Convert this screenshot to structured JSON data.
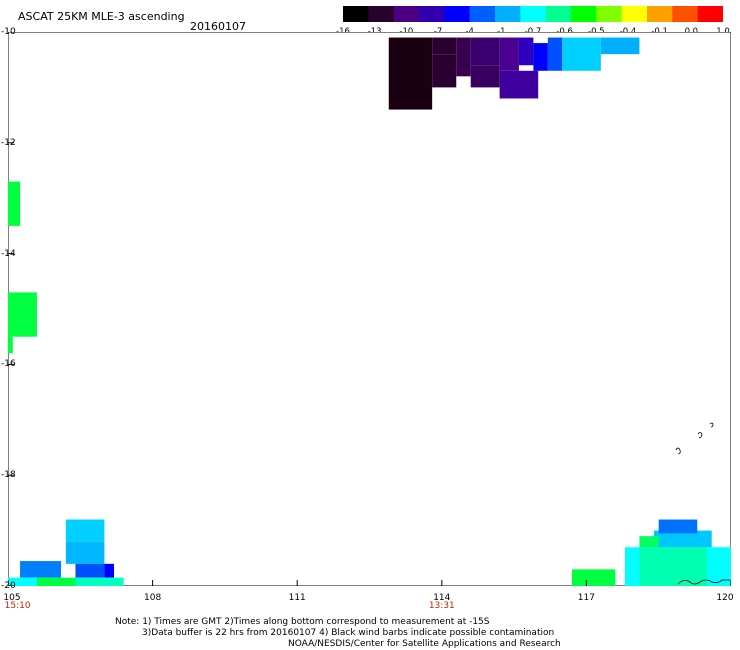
{
  "header": {
    "title": "ASCAT 25KM MLE-3 ascending",
    "date": "20160107"
  },
  "colorbar": {
    "labels": [
      "-16",
      "-13",
      "-10",
      "-7",
      "-4",
      "-1",
      "-0.7",
      "-0.6",
      "-0.5",
      "-0.4",
      "-0.1",
      "0.0",
      "1.0"
    ],
    "colors": [
      "#000000",
      "#2a0030",
      "#4a0080",
      "#3000b0",
      "#0000ff",
      "#0060ff",
      "#00b0ff",
      "#00ffff",
      "#00ff90",
      "#00ff00",
      "#80ff00",
      "#ffff00",
      "#ffa000",
      "#ff5000",
      "#ff0000"
    ]
  },
  "map": {
    "lon_min": 105,
    "lon_max": 120,
    "lat_min": -20,
    "lat_max": -10,
    "y_labels": [
      "-10",
      "-12",
      "-14",
      "-16",
      "-18",
      "-20"
    ],
    "x_labels": [
      "105",
      "108",
      "111",
      "114",
      "117",
      "120"
    ],
    "time_labels": [
      {
        "text": "15:10",
        "lon": 105.2
      },
      {
        "text": "13:31",
        "lon": 114
      }
    ],
    "cells": [
      {
        "lon0": 112.9,
        "lon1": 113.8,
        "lat0": -10.1,
        "lat1": -11.4,
        "color": "#1a0010"
      },
      {
        "lon0": 113.8,
        "lon1": 114.3,
        "lat0": -10.1,
        "lat1": -10.4,
        "color": "#2a0030"
      },
      {
        "lon0": 113.8,
        "lon1": 114.3,
        "lat0": -10.4,
        "lat1": -11.0,
        "color": "#2a0030"
      },
      {
        "lon0": 114.3,
        "lon1": 114.6,
        "lat0": -10.1,
        "lat1": -10.8,
        "color": "#3a0050"
      },
      {
        "lon0": 114.6,
        "lon1": 115.2,
        "lat0": -10.1,
        "lat1": -10.6,
        "color": "#3a0070"
      },
      {
        "lon0": 114.6,
        "lon1": 115.2,
        "lat0": -10.6,
        "lat1": -11.0,
        "color": "#380060"
      },
      {
        "lon0": 115.2,
        "lon1": 115.6,
        "lat0": -10.1,
        "lat1": -10.7,
        "color": "#4a0090"
      },
      {
        "lon0": 115.2,
        "lon1": 116.0,
        "lat0": -10.7,
        "lat1": -11.2,
        "color": "#4000a0"
      },
      {
        "lon0": 115.6,
        "lon1": 115.9,
        "lat0": -10.1,
        "lat1": -10.6,
        "color": "#3000c0"
      },
      {
        "lon0": 115.9,
        "lon1": 116.2,
        "lat0": -10.2,
        "lat1": -10.7,
        "color": "#0000ff"
      },
      {
        "lon0": 116.2,
        "lon1": 116.5,
        "lat0": -10.1,
        "lat1": -10.7,
        "color": "#0050ff"
      },
      {
        "lon0": 116.5,
        "lon1": 117.3,
        "lat0": -10.1,
        "lat1": -10.7,
        "color": "#00d0ff"
      },
      {
        "lon0": 117.3,
        "lon1": 118.1,
        "lat0": -10.1,
        "lat1": -10.4,
        "color": "#00b0ff"
      },
      {
        "lon0": 105.0,
        "lon1": 105.25,
        "lat0": -12.7,
        "lat1": -13.5,
        "color": "#00ff40"
      },
      {
        "lon0": 105.0,
        "lon1": 105.6,
        "lat0": -14.7,
        "lat1": -15.5,
        "color": "#00ff40"
      },
      {
        "lon0": 105.0,
        "lon1": 105.1,
        "lat0": -15.5,
        "lat1": -15.8,
        "color": "#00ff40"
      },
      {
        "lon0": 106.2,
        "lon1": 107.0,
        "lat0": -18.8,
        "lat1": -19.2,
        "color": "#00d0ff"
      },
      {
        "lon0": 106.2,
        "lon1": 107.0,
        "lat0": -19.2,
        "lat1": -19.6,
        "color": "#00b8ff"
      },
      {
        "lon0": 106.4,
        "lon1": 107.0,
        "lat0": -19.6,
        "lat1": -19.85,
        "color": "#0050ff"
      },
      {
        "lon0": 107.0,
        "lon1": 107.2,
        "lat0": -19.6,
        "lat1": -19.85,
        "color": "#0000ff"
      },
      {
        "lon0": 105.25,
        "lon1": 106.1,
        "lat0": -19.55,
        "lat1": -19.85,
        "color": "#0080ff"
      },
      {
        "lon0": 105.0,
        "lon1": 105.6,
        "lat0": -19.85,
        "lat1": -20.0,
        "color": "#00ffff"
      },
      {
        "lon0": 105.6,
        "lon1": 106.4,
        "lat0": -19.85,
        "lat1": -20.0,
        "color": "#00ff40"
      },
      {
        "lon0": 106.4,
        "lon1": 107.4,
        "lat0": -19.85,
        "lat1": -20.0,
        "color": "#00ffc0"
      },
      {
        "lon0": 116.7,
        "lon1": 117.6,
        "lat0": -19.7,
        "lat1": -20.0,
        "color": "#00ff40"
      },
      {
        "lon0": 117.8,
        "lon1": 120.0,
        "lat0": -19.3,
        "lat1": -20.0,
        "color": "#00ffff"
      },
      {
        "lon0": 118.1,
        "lon1": 119.5,
        "lat0": -19.3,
        "lat1": -20.0,
        "color": "#00ffb0"
      },
      {
        "lon0": 118.4,
        "lon1": 119.6,
        "lat0": -19.0,
        "lat1": -19.3,
        "color": "#00c8ff"
      },
      {
        "lon0": 118.5,
        "lon1": 119.3,
        "lat0": -18.8,
        "lat1": -19.05,
        "color": "#0070ff"
      },
      {
        "lon0": 118.1,
        "lon1": 118.5,
        "lat0": -19.1,
        "lat1": -19.3,
        "color": "#00ff60"
      }
    ]
  },
  "notes": {
    "line1": "Note: 1) Times are GMT 2)Times along bottom correspond to measurement at -15S",
    "line2": "3)Data buffer is 22 hrs from 20160107 4) Black wind barbs indicate possible contamination",
    "line3": "NOAA/NESDIS/Center for Satellite Applications and Research"
  }
}
